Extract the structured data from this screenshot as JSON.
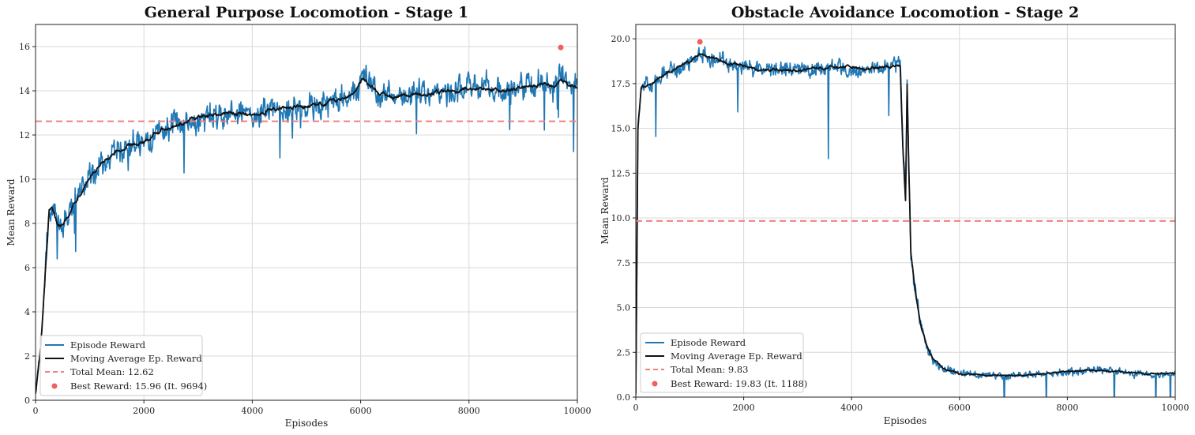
{
  "chart_data": [
    {
      "type": "line",
      "title": "General Purpose Locomotion - Stage 1",
      "xlabel": "Episodes",
      "ylabel": "Mean Reward",
      "xlim": [
        0,
        10000
      ],
      "ylim": [
        0,
        17
      ],
      "xticks": [
        0,
        2000,
        4000,
        6000,
        8000,
        10000
      ],
      "yticks": [
        0,
        2,
        4,
        6,
        8,
        10,
        12,
        14,
        16
      ],
      "ytick_labels": [
        "0",
        "2",
        "4",
        "6",
        "8",
        "10",
        "12",
        "14",
        "16"
      ],
      "grid": true,
      "legend_position": "lower-left",
      "series": [
        {
          "name": "Episode Reward",
          "color": "#1f77b4",
          "x": [
            0,
            100,
            200,
            250,
            300,
            400,
            500,
            600,
            800,
            1000,
            1200,
            1500,
            1800,
            2000,
            2200,
            2500,
            2800,
            3000,
            3300,
            3600,
            4000,
            4300,
            4600,
            5000,
            5300,
            5600,
            5900,
            6050,
            6300,
            6600,
            7000,
            7300,
            7600,
            8000,
            8300,
            8600,
            9000,
            9300,
            9600,
            9694,
            9800,
            10000
          ],
          "values": [
            0.3,
            2.5,
            6.5,
            8.5,
            8.6,
            8.0,
            7.9,
            8.4,
            9.3,
            10.1,
            10.6,
            11.2,
            11.6,
            11.6,
            12.1,
            12.4,
            12.6,
            12.8,
            12.9,
            13.0,
            12.9,
            13.1,
            13.2,
            13.3,
            13.4,
            13.6,
            14.0,
            14.6,
            14.0,
            13.7,
            13.8,
            13.9,
            14.0,
            14.1,
            14.1,
            14.0,
            14.2,
            14.3,
            14.3,
            14.5,
            14.3,
            14.2
          ]
        },
        {
          "name": "Moving Average Ep. Reward",
          "color": "#111111",
          "x": [
            0,
            100,
            200,
            250,
            300,
            400,
            500,
            600,
            800,
            1000,
            1200,
            1500,
            1800,
            2000,
            2200,
            2500,
            2800,
            3000,
            3300,
            3600,
            4000,
            4300,
            4600,
            5000,
            5300,
            5600,
            5900,
            6050,
            6300,
            6600,
            7000,
            7300,
            7600,
            8000,
            8300,
            8600,
            9000,
            9300,
            9600,
            9694,
            9800,
            10000
          ],
          "values": [
            0.3,
            2.5,
            6.5,
            8.5,
            8.6,
            8.0,
            7.9,
            8.4,
            9.3,
            10.1,
            10.6,
            11.2,
            11.6,
            11.6,
            12.1,
            12.4,
            12.6,
            12.8,
            12.9,
            13.0,
            12.9,
            13.1,
            13.2,
            13.3,
            13.4,
            13.6,
            14.0,
            14.6,
            14.0,
            13.7,
            13.8,
            13.9,
            14.0,
            14.1,
            14.1,
            14.0,
            14.2,
            14.3,
            14.3,
            14.5,
            14.3,
            14.2
          ]
        },
        {
          "name": "Total Mean: 12.62",
          "color": "#f08080",
          "style": "dashed",
          "y": 12.62
        },
        {
          "name": "Best Reward: 15.96 (It. 9694)",
          "color": "#f06060",
          "marker": "point",
          "x": 9694,
          "y": 15.96
        }
      ]
    },
    {
      "type": "line",
      "title": "Obstacle Avoidance Locomotion - Stage 2",
      "xlabel": "Episodes",
      "ylabel": "Mean Reward",
      "xlim": [
        0,
        10000
      ],
      "ylim": [
        0,
        20.8
      ],
      "xticks": [
        0,
        2000,
        4000,
        6000,
        8000,
        10000
      ],
      "yticks": [
        0,
        2.5,
        5,
        7.5,
        10,
        12.5,
        15,
        17.5,
        20
      ],
      "ytick_labels": [
        "0.0",
        "2.5",
        "5.0",
        "7.5",
        "10.0",
        "12.5",
        "15.0",
        "17.5",
        "20.0"
      ],
      "grid": true,
      "legend_position": "lower-left",
      "series": [
        {
          "name": "Episode Reward",
          "color": "#1f77b4",
          "x": [
            0,
            40,
            100,
            300,
            500,
            800,
            1000,
            1188,
            1400,
            1700,
            2000,
            2300,
            2600,
            3000,
            3400,
            3800,
            4200,
            4600,
            4900,
            4950,
            5000,
            5030,
            5060,
            5100,
            5200,
            5300,
            5400,
            5500,
            5700,
            6000,
            6500,
            7000,
            7500,
            8000,
            8500,
            9000,
            9500,
            10000
          ],
          "values": [
            0.2,
            15.0,
            17.3,
            17.5,
            18.0,
            18.4,
            18.7,
            19.1,
            18.9,
            18.6,
            18.5,
            18.2,
            18.3,
            18.2,
            18.3,
            18.4,
            18.3,
            18.4,
            18.5,
            14.0,
            11.0,
            17.5,
            13.0,
            8.0,
            5.5,
            3.8,
            2.8,
            2.2,
            1.6,
            1.3,
            1.2,
            1.2,
            1.3,
            1.4,
            1.5,
            1.4,
            1.3,
            1.3
          ]
        },
        {
          "name": "Moving Average Ep. Reward",
          "color": "#111111",
          "x": [
            0,
            40,
            100,
            300,
            500,
            800,
            1000,
            1188,
            1400,
            1700,
            2000,
            2300,
            2600,
            3000,
            3400,
            3800,
            4200,
            4600,
            4900,
            4950,
            5000,
            5030,
            5060,
            5100,
            5200,
            5300,
            5400,
            5500,
            5700,
            6000,
            6500,
            7000,
            7500,
            8000,
            8500,
            9000,
            9500,
            10000
          ],
          "values": [
            0.2,
            15.0,
            17.3,
            17.5,
            18.0,
            18.4,
            18.7,
            19.1,
            18.9,
            18.6,
            18.5,
            18.2,
            18.3,
            18.2,
            18.3,
            18.4,
            18.3,
            18.4,
            18.5,
            14.0,
            11.0,
            17.5,
            13.0,
            8.0,
            5.5,
            3.8,
            2.8,
            2.2,
            1.6,
            1.3,
            1.2,
            1.2,
            1.3,
            1.4,
            1.5,
            1.4,
            1.3,
            1.3
          ]
        },
        {
          "name": "Total Mean: 9.83",
          "color": "#f08080",
          "style": "dashed",
          "y": 9.83
        },
        {
          "name": "Best Reward: 19.83 (It. 1188)",
          "color": "#f06060",
          "marker": "point",
          "x": 1188,
          "y": 19.83
        }
      ]
    }
  ]
}
